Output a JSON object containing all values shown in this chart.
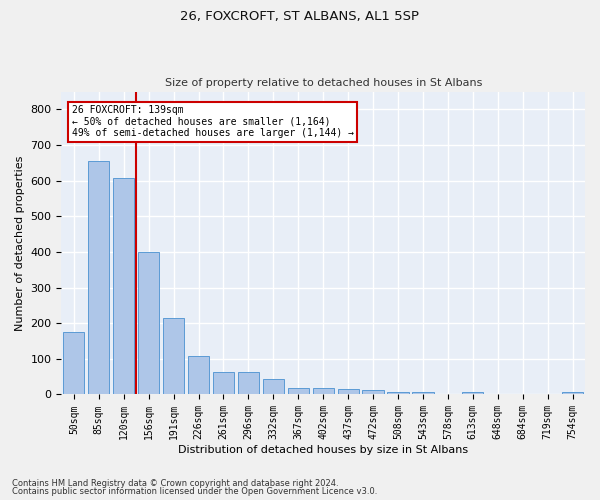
{
  "title1": "26, FOXCROFT, ST ALBANS, AL1 5SP",
  "title2": "Size of property relative to detached houses in St Albans",
  "xlabel": "Distribution of detached houses by size in St Albans",
  "ylabel": "Number of detached properties",
  "footnote1": "Contains HM Land Registry data © Crown copyright and database right 2024.",
  "footnote2": "Contains public sector information licensed under the Open Government Licence v3.0.",
  "categories": [
    "50sqm",
    "85sqm",
    "120sqm",
    "156sqm",
    "191sqm",
    "226sqm",
    "261sqm",
    "296sqm",
    "332sqm",
    "367sqm",
    "402sqm",
    "437sqm",
    "472sqm",
    "508sqm",
    "543sqm",
    "578sqm",
    "613sqm",
    "648sqm",
    "684sqm",
    "719sqm",
    "754sqm"
  ],
  "values": [
    175,
    655,
    608,
    400,
    215,
    107,
    63,
    63,
    44,
    18,
    17,
    14,
    13,
    7,
    7,
    0,
    8,
    0,
    0,
    0,
    6
  ],
  "bar_color": "#aec6e8",
  "bar_edge_color": "#5b9bd5",
  "background_color": "#e8eef7",
  "grid_color": "#ffffff",
  "fig_background": "#f0f0f0",
  "vline_x": 2.5,
  "vline_color": "#cc0000",
  "annotation_text": "26 FOXCROFT: 139sqm\n← 50% of detached houses are smaller (1,164)\n49% of semi-detached houses are larger (1,144) →",
  "annotation_box_color": "#ffffff",
  "annotation_border_color": "#cc0000",
  "ylim": [
    0,
    850
  ],
  "yticks": [
    0,
    100,
    200,
    300,
    400,
    500,
    600,
    700,
    800
  ]
}
